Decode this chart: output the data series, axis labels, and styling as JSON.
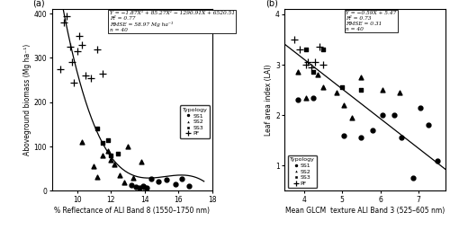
{
  "panel_a": {
    "title_label": "(a)",
    "xlabel": "% Reflectance of ALI Band 8 (1550–1750 nm)",
    "ylabel": "Aboveground biomass (Mg ha⁻¹)",
    "equation": "Y = −1.87X³ + 85.27X² − 1290.91X + 6520.51",
    "r2": "R² = 0.77",
    "rmse": "RMSE = 58.97 Mg ha⁻¹",
    "n": "n = 40",
    "xlim": [
      8.5,
      18
    ],
    "ylim": [
      0,
      410
    ],
    "xticks": [
      10,
      12,
      14,
      16,
      18
    ],
    "yticks": [
      0,
      100,
      200,
      300,
      400
    ],
    "poly_coeffs": [
      -1.87,
      85.27,
      -1290.91,
      6520.51
    ],
    "SS1_x": [
      13.2,
      13.5,
      13.7,
      13.9,
      14.1,
      14.4,
      14.8,
      15.3,
      15.8,
      16.2,
      16.6
    ],
    "SS1_y": [
      13,
      10,
      8,
      12,
      7,
      27,
      22,
      26,
      16,
      28,
      12
    ],
    "SS2_x": [
      10.3,
      11.0,
      11.2,
      11.5,
      11.8,
      12.0,
      12.2,
      12.5,
      12.8,
      13.0,
      13.3,
      13.8,
      14.0
    ],
    "SS2_y": [
      110,
      55,
      32,
      80,
      90,
      70,
      60,
      35,
      20,
      100,
      30,
      65,
      10
    ],
    "SS3_x": [
      11.2,
      11.5,
      11.8,
      12.0,
      12.4
    ],
    "SS3_y": [
      140,
      108,
      115,
      80,
      85
    ],
    "PF_x": [
      9.0,
      9.2,
      9.4,
      9.6,
      9.7,
      9.8,
      10.0,
      10.1,
      10.3,
      10.5,
      10.8,
      11.2,
      11.5
    ],
    "PF_y": [
      275,
      380,
      395,
      325,
      290,
      245,
      315,
      350,
      330,
      260,
      255,
      320,
      265
    ]
  },
  "panel_b": {
    "title_label": "(b)",
    "xlabel": "Mean GLCM  texture ALI Band 3 (525–605 nm)",
    "ylabel": "Leaf area index (LAI)",
    "equation": "Y = −0.59X + 5.47",
    "r2": "R² = 0.73",
    "rmse": "RMSE = 0.31",
    "n": "n = 40",
    "xlim": [
      3.5,
      7.7
    ],
    "ylim": [
      0.5,
      4.1
    ],
    "xticks": [
      4,
      5,
      6,
      7
    ],
    "yticks": [
      1,
      2,
      3,
      4
    ],
    "line_coeffs": [
      -0.59,
      5.47
    ],
    "SS1_x": [
      3.85,
      4.25,
      5.05,
      5.5,
      5.8,
      6.05,
      6.35,
      6.55,
      6.85,
      7.05,
      7.25,
      7.5
    ],
    "SS1_y": [
      2.3,
      2.35,
      1.6,
      1.55,
      1.7,
      2.0,
      2.0,
      1.55,
      0.75,
      2.15,
      1.8,
      1.1
    ],
    "SS2_x": [
      3.85,
      4.05,
      4.35,
      4.5,
      4.85,
      5.05,
      5.25,
      5.5,
      6.05,
      6.5
    ],
    "SS2_y": [
      2.85,
      2.35,
      2.8,
      2.55,
      2.45,
      2.2,
      1.95,
      2.75,
      2.5,
      2.45
    ],
    "SS3_x": [
      4.05,
      4.25,
      4.5,
      5.0,
      5.5
    ],
    "SS3_y": [
      3.3,
      2.85,
      3.3,
      2.55,
      2.5
    ],
    "PF_x": [
      3.75,
      3.9,
      4.05,
      4.1,
      4.2,
      4.3,
      4.4,
      4.5
    ],
    "PF_y": [
      3.5,
      3.3,
      3.0,
      3.05,
      2.95,
      3.05,
      3.35,
      3.0
    ]
  }
}
